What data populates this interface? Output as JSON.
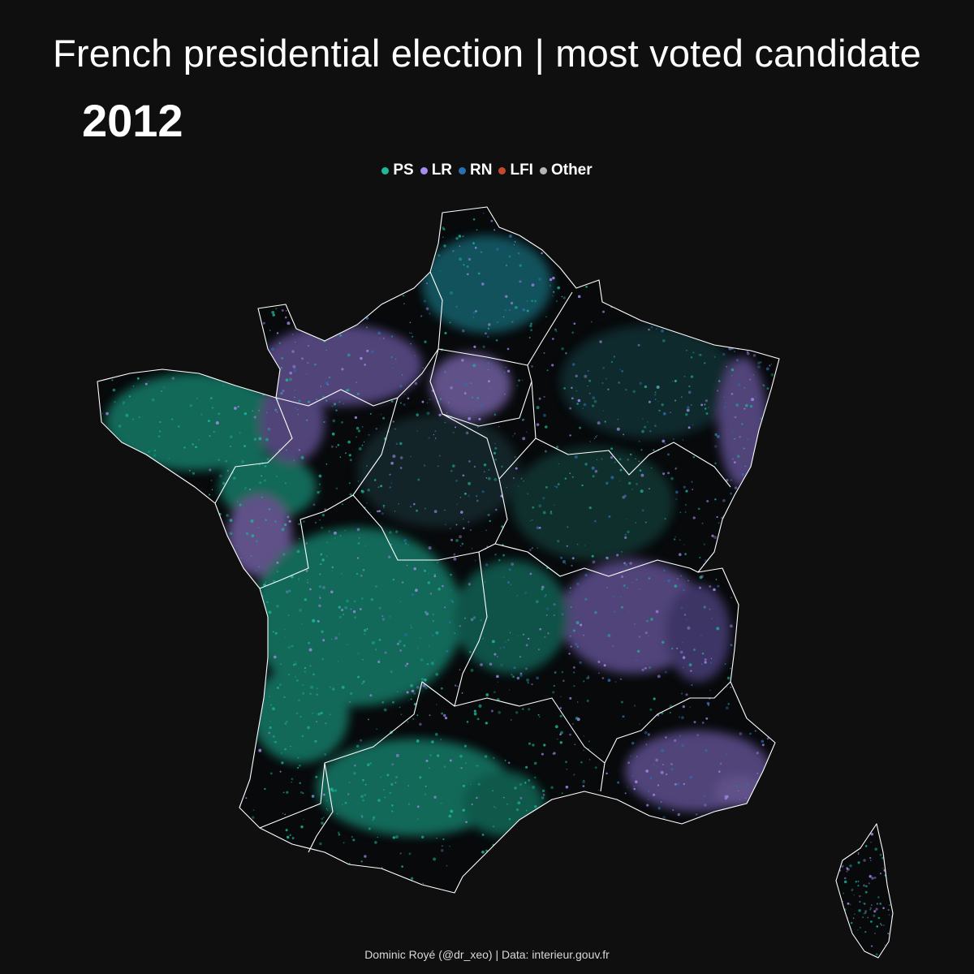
{
  "title": "French presidential election | most voted candidate",
  "year": "2012",
  "legend": [
    {
      "label": "PS",
      "color": "#1fb89a"
    },
    {
      "label": "LR",
      "color": "#a98cf0"
    },
    {
      "label": "RN",
      "color": "#2a6fb0"
    },
    {
      "label": "LFI",
      "color": "#c8472f"
    },
    {
      "label": "Other",
      "color": "#b5b5b5"
    }
  ],
  "caption": "Dominic Royé (@dr_xeo) | Data: interieur.gouv.fr",
  "colors": {
    "background": "#0f0f0f",
    "border": "#ffffff",
    "land": "#06080a"
  }
}
